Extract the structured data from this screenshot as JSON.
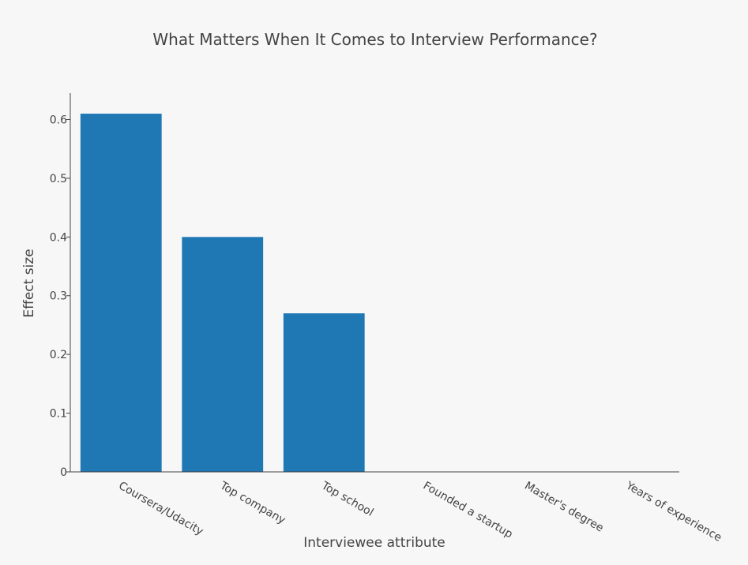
{
  "chart_data": {
    "type": "bar",
    "title": "What Matters When It Comes to Interview Performance?",
    "xlabel": "Interviewee attribute",
    "ylabel": "Effect size",
    "categories": [
      "Coursera/Udacity",
      "Top company",
      "Top school",
      "Founded a startup",
      "Master's degree",
      "Years of experience"
    ],
    "values": [
      0.61,
      0.4,
      0.27,
      0,
      0,
      0
    ],
    "ylim": [
      0,
      0.645
    ],
    "yticks": [
      0,
      0.1,
      0.2,
      0.3,
      0.4,
      0.5,
      0.6
    ],
    "ytick_labels": [
      "0",
      "0.1",
      "0.2",
      "0.3",
      "0.4",
      "0.5",
      "0.6"
    ],
    "grid": false,
    "legend": "none",
    "bar_color": "#1f77b4",
    "background_color": "#f7f7f7",
    "text_color": "#444444"
  }
}
